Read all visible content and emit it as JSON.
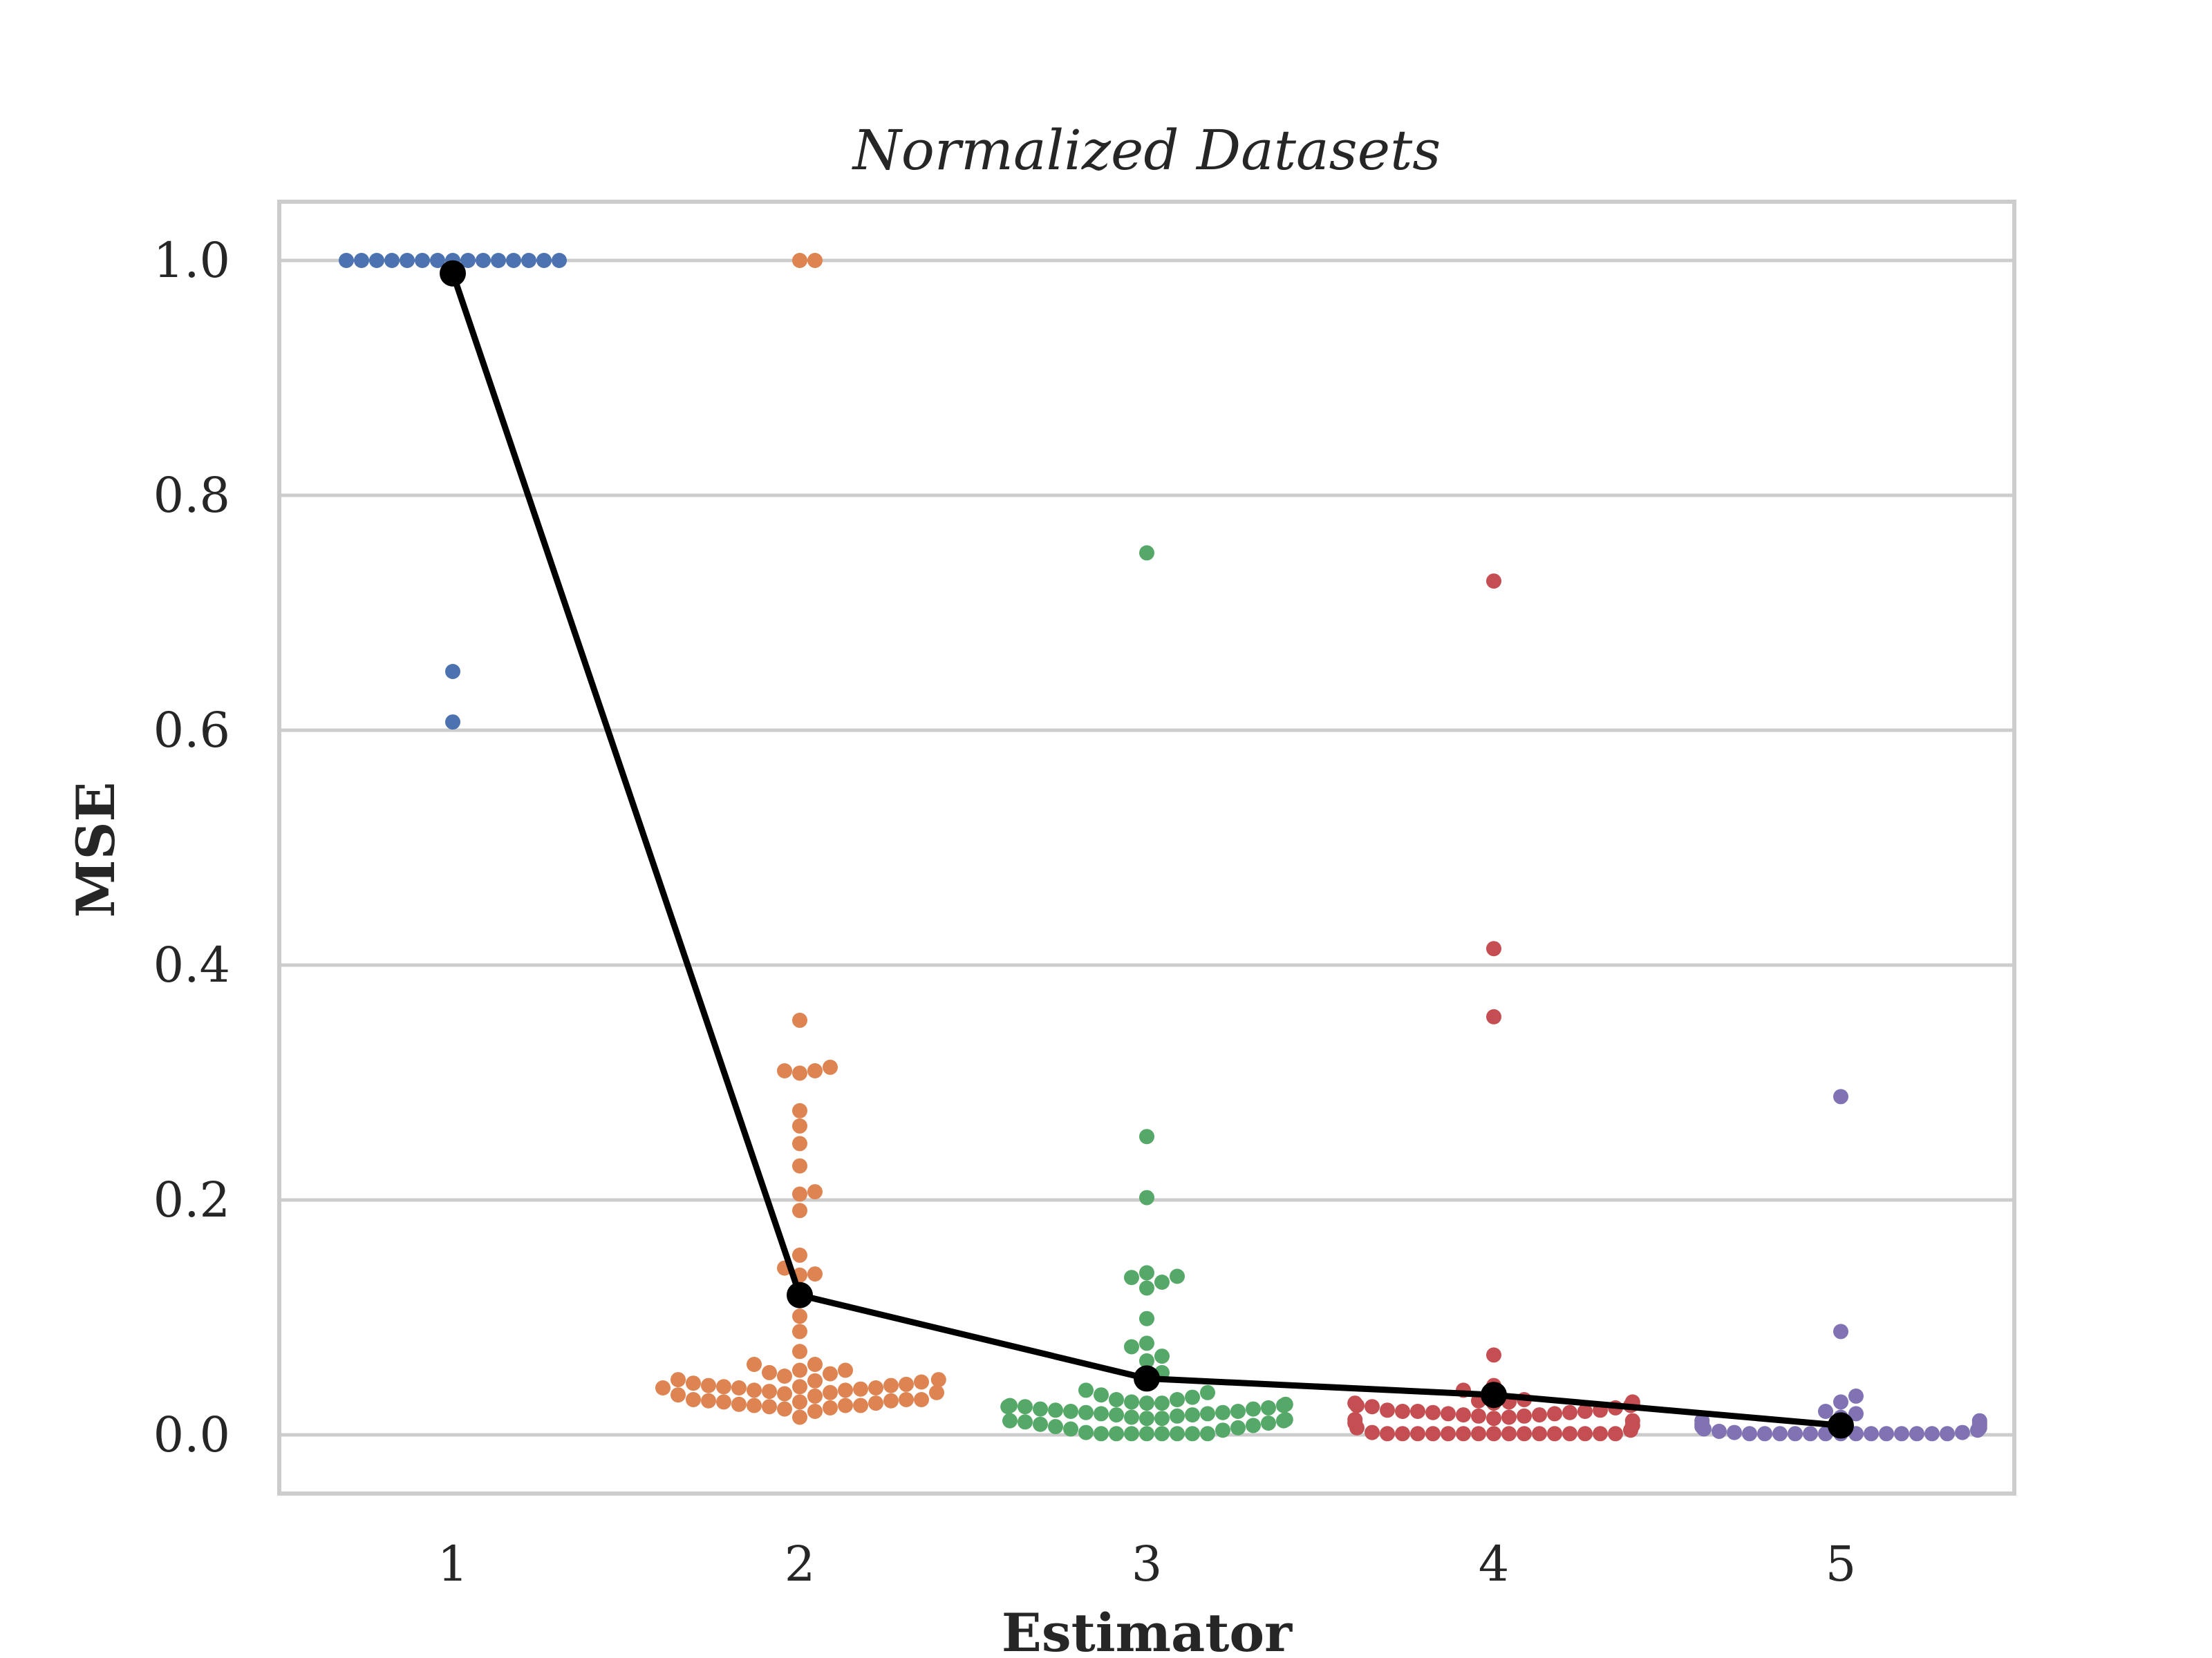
{
  "chart_data": {
    "type": "scatter",
    "subtype": "swarm",
    "title": "Normalized Datasets",
    "xlabel": "Estimator",
    "ylabel": "MSE",
    "categories": [
      "1",
      "2",
      "3",
      "4",
      "5"
    ],
    "ylim": [
      -0.05,
      1.05
    ],
    "yticks": [
      "0.0",
      "0.2",
      "0.4",
      "0.6",
      "0.8",
      "1.0"
    ],
    "grid": true,
    "legend": "none",
    "series": [
      {
        "category": "1",
        "color": "#4C72B0",
        "values": [
          1.0,
          1.0,
          1.0,
          1.0,
          1.0,
          1.0,
          1.0,
          1.0,
          1.0,
          1.0,
          1.0,
          1.0,
          1.0,
          1.0,
          1.0,
          0.65,
          0.607
        ]
      },
      {
        "category": "2",
        "color": "#DD8452",
        "values": [
          1.0,
          1.0,
          0.353,
          0.313,
          0.31,
          0.308,
          0.31,
          0.276,
          0.263,
          0.248,
          0.229,
          0.205,
          0.207,
          0.191,
          0.153,
          0.136,
          0.142,
          0.137,
          0.101,
          0.088,
          0.071,
          0.06,
          0.055,
          0.055,
          0.06,
          0.052,
          0.053,
          0.05,
          0.047,
          0.047,
          0.046,
          0.045,
          0.044,
          0.043,
          0.042,
          0.042,
          0.041,
          0.041,
          0.04,
          0.04,
          0.04,
          0.039,
          0.038,
          0.038,
          0.037,
          0.036,
          0.036,
          0.035,
          0.034,
          0.033,
          0.03,
          0.03,
          0.03,
          0.029,
          0.029,
          0.028,
          0.028,
          0.027,
          0.026,
          0.025,
          0.025,
          0.025,
          0.024,
          0.023,
          0.022,
          0.02,
          0.015
        ]
      },
      {
        "category": "3",
        "color": "#55A868",
        "values": [
          0.751,
          0.254,
          0.202,
          0.138,
          0.134,
          0.13,
          0.135,
          0.125,
          0.099,
          0.078,
          0.075,
          0.067,
          0.063,
          0.053,
          0.048,
          0.038,
          0.036,
          0.034,
          0.032,
          0.03,
          0.03,
          0.028,
          0.027,
          0.027,
          0.026,
          0.025,
          0.025,
          0.024,
          0.024,
          0.023,
          0.022,
          0.022,
          0.021,
          0.02,
          0.02,
          0.019,
          0.019,
          0.018,
          0.018,
          0.017,
          0.017,
          0.016,
          0.015,
          0.014,
          0.014,
          0.013,
          0.012,
          0.012,
          0.011,
          0.01,
          0.009,
          0.008,
          0.007,
          0.006,
          0.005,
          0.004,
          0.002,
          0.001,
          0.001,
          0.001,
          0.001,
          0.001,
          0.001,
          0.001,
          0.001
        ]
      },
      {
        "category": "4",
        "color": "#C44E52",
        "values": [
          0.727,
          0.414,
          0.356,
          0.068,
          0.042,
          0.038,
          0.03,
          0.029,
          0.028,
          0.028,
          0.027,
          0.027,
          0.026,
          0.025,
          0.025,
          0.024,
          0.023,
          0.021,
          0.021,
          0.02,
          0.02,
          0.02,
          0.019,
          0.019,
          0.018,
          0.018,
          0.017,
          0.017,
          0.016,
          0.016,
          0.015,
          0.014,
          0.013,
          0.012,
          0.01,
          0.008,
          0.006,
          0.004,
          0.002,
          0.001,
          0.001,
          0.001,
          0.001,
          0.001,
          0.001,
          0.001,
          0.001,
          0.001,
          0.001,
          0.001,
          0.001,
          0.001,
          0.001,
          0.001,
          0.001
        ]
      },
      {
        "category": "5",
        "color": "#8172B3",
        "values": [
          0.288,
          0.088,
          0.033,
          0.028,
          0.02,
          0.018,
          0.015,
          0.012,
          0.012,
          0.01,
          0.009,
          0.008,
          0.007,
          0.006,
          0.005,
          0.004,
          0.003,
          0.002,
          0.002,
          0.001,
          0.001,
          0.001,
          0.001,
          0.001,
          0.001,
          0.001,
          0.001,
          0.001,
          0.001,
          0.001,
          0.001,
          0.001,
          0.001
        ]
      }
    ],
    "mean_line": {
      "color": "#000000",
      "values": [
        0.989,
        0.119,
        0.048,
        0.034,
        0.008
      ]
    }
  }
}
